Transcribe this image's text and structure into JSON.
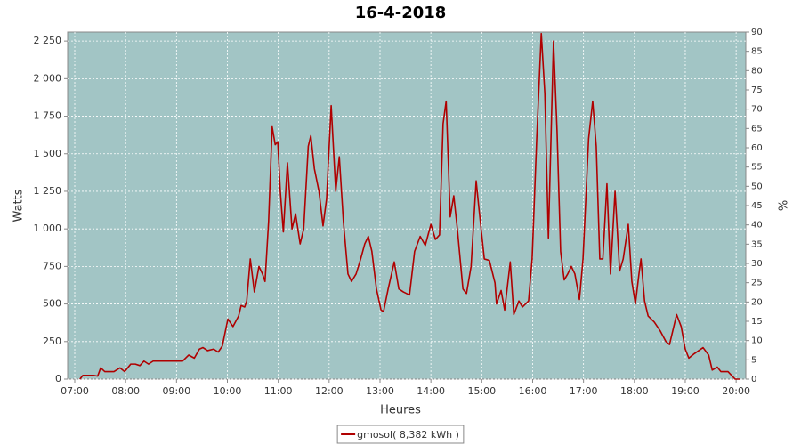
{
  "chart_data": {
    "type": "line",
    "title": "16-4-2018",
    "x_label": "Heures",
    "y_label": "Watts",
    "y2_label": "%",
    "x": [
      7.1,
      7.16,
      7.37,
      7.45,
      7.51,
      7.59,
      7.77,
      7.89,
      7.98,
      8.1,
      8.19,
      8.28,
      8.36,
      8.45,
      8.54,
      8.68,
      9.12,
      9.24,
      9.35,
      9.45,
      9.52,
      9.61,
      9.73,
      9.82,
      9.9,
      10.01,
      10.11,
      10.22,
      10.27,
      10.34,
      10.38,
      10.45,
      10.53,
      10.62,
      10.69,
      10.74,
      10.81,
      10.88,
      10.94,
      10.99,
      11.04,
      11.1,
      11.18,
      11.27,
      11.34,
      11.43,
      11.5,
      11.59,
      11.64,
      11.71,
      11.8,
      11.88,
      11.95,
      12.04,
      12.13,
      12.2,
      12.28,
      12.37,
      12.44,
      12.53,
      12.62,
      12.7,
      12.77,
      12.84,
      12.93,
      13.02,
      13.07,
      13.16,
      13.28,
      13.37,
      13.46,
      13.58,
      13.68,
      13.79,
      13.89,
      14.0,
      14.09,
      14.17,
      14.24,
      14.3,
      14.38,
      14.45,
      14.52,
      14.63,
      14.7,
      14.79,
      14.89,
      14.94,
      15.05,
      15.15,
      15.26,
      15.29,
      15.38,
      15.45,
      15.56,
      15.63,
      15.73,
      15.8,
      15.92,
      15.99,
      16.08,
      16.17,
      16.24,
      16.31,
      16.41,
      16.48,
      16.55,
      16.62,
      16.69,
      16.76,
      16.83,
      16.92,
      16.99,
      17.1,
      17.18,
      17.25,
      17.32,
      17.38,
      17.46,
      17.53,
      17.62,
      17.71,
      17.78,
      17.88,
      17.95,
      18.02,
      18.09,
      18.13,
      18.2,
      18.27,
      18.39,
      18.51,
      18.62,
      18.69,
      18.83,
      18.92,
      19.0,
      19.07,
      19.18,
      19.35,
      19.46,
      19.53,
      19.63,
      19.7,
      19.84,
      19.98,
      20.07
    ],
    "series": [
      {
        "name": "gmosol( 8,382 kWh )",
        "color": "#b00000",
        "values": [
          0,
          25,
          25,
          20,
          75,
          50,
          50,
          75,
          50,
          100,
          100,
          90,
          120,
          100,
          120,
          120,
          120,
          160,
          140,
          200,
          210,
          190,
          200,
          180,
          220,
          400,
          350,
          420,
          490,
          480,
          520,
          800,
          580,
          750,
          700,
          650,
          1050,
          1680,
          1560,
          1580,
          1250,
          980,
          1440,
          1000,
          1100,
          900,
          1000,
          1550,
          1620,
          1400,
          1250,
          1020,
          1200,
          1820,
          1250,
          1480,
          1050,
          700,
          650,
          700,
          800,
          900,
          950,
          850,
          600,
          460,
          450,
          600,
          780,
          600,
          580,
          560,
          850,
          950,
          890,
          1030,
          930,
          960,
          1700,
          1850,
          1080,
          1220,
          1000,
          600,
          570,
          750,
          1320,
          1150,
          800,
          790,
          640,
          500,
          590,
          460,
          780,
          430,
          520,
          480,
          520,
          800,
          1600,
          2300,
          1900,
          940,
          2250,
          1650,
          850,
          660,
          700,
          750,
          700,
          530,
          800,
          1600,
          1850,
          1550,
          800,
          800,
          1300,
          700,
          1250,
          720,
          800,
          1030,
          650,
          500,
          700,
          800,
          520,
          420,
          380,
          320,
          250,
          230,
          430,
          350,
          200,
          140,
          170,
          210,
          160,
          60,
          80,
          50,
          50,
          0,
          0
        ]
      }
    ],
    "xlim": [
      6.86,
      20.19
    ],
    "xticks": [
      {
        "value": 7,
        "label": "07:00"
      },
      {
        "value": 8,
        "label": "08:00"
      },
      {
        "value": 9,
        "label": "09:00"
      },
      {
        "value": 10,
        "label": "10:00"
      },
      {
        "value": 11,
        "label": "11:00"
      },
      {
        "value": 12,
        "label": "12:00"
      },
      {
        "value": 13,
        "label": "13:00"
      },
      {
        "value": 14,
        "label": "14:00"
      },
      {
        "value": 15,
        "label": "15:00"
      },
      {
        "value": 16,
        "label": "16:00"
      },
      {
        "value": 17,
        "label": "17:00"
      },
      {
        "value": 18,
        "label": "18:00"
      },
      {
        "value": 19,
        "label": "19:00"
      },
      {
        "value": 20,
        "label": "20:00"
      }
    ],
    "ylim": [
      0,
      2310
    ],
    "yticks": [
      0,
      250,
      500,
      750,
      {
        "value": 1000,
        "label": "1 000"
      },
      {
        "value": 1250,
        "label": "1 250"
      },
      {
        "value": 1500,
        "label": "1 500"
      },
      {
        "value": 1750,
        "label": "1 750"
      },
      {
        "value": 2000,
        "label": "2 000"
      },
      {
        "value": 2250,
        "label": "2 250"
      }
    ],
    "y2lim": [
      0,
      90
    ],
    "y2ticks": [
      0,
      5,
      10,
      15,
      20,
      25,
      30,
      35,
      40,
      45,
      50,
      55,
      60,
      65,
      70,
      75,
      80,
      85,
      90
    ],
    "grid": true,
    "plot_background": "#a2c5c5"
  }
}
